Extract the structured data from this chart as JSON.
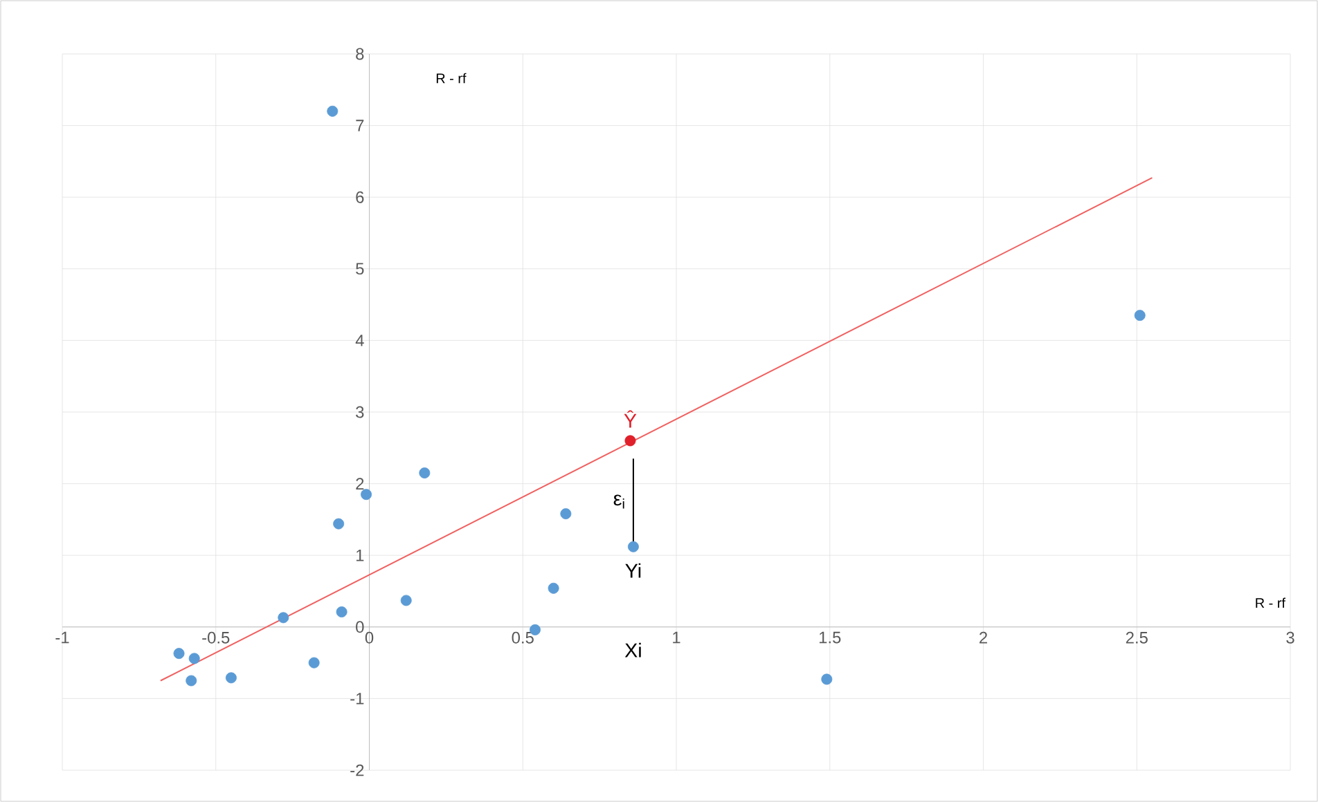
{
  "chart_data": {
    "type": "scatter",
    "xlabel": "R - rf",
    "ylabel": "R - rf",
    "xlim": [
      -1,
      3
    ],
    "ylim": [
      -2,
      8
    ],
    "xticks": [
      -1,
      -0.5,
      0,
      0.5,
      1,
      1.5,
      2,
      2.5,
      3
    ],
    "yticks": [
      -2,
      -1,
      0,
      1,
      2,
      3,
      4,
      5,
      6,
      7,
      8
    ],
    "grid": true,
    "series": [
      {
        "marker": "circle",
        "color": "#5b9bd5",
        "x": [
          -0.12,
          2.51,
          0.18,
          -0.01,
          0.64,
          -0.1,
          0.86,
          0.12,
          -0.09,
          0.6,
          -0.28,
          0.54,
          -0.62,
          -0.57,
          -0.18,
          -0.58,
          -0.45,
          1.49
        ],
        "values": [
          7.2,
          4.35,
          2.15,
          1.85,
          1.58,
          1.44,
          1.12,
          0.37,
          0.21,
          0.54,
          0.13,
          -0.04,
          -0.37,
          -0.44,
          -0.5,
          -0.75,
          -0.71,
          -0.73
        ]
      },
      {
        "type": "line",
        "color": "#f06060",
        "x": [
          -0.68,
          2.55
        ],
        "values": [
          -0.75,
          6.27
        ]
      },
      {
        "type": "line",
        "color": "#000000",
        "x": [
          0.86,
          0.86
        ],
        "values": [
          2.35,
          1.15
        ]
      },
      {
        "marker": "circle",
        "color": "#e0202a",
        "x": [
          0.85
        ],
        "values": [
          2.6
        ]
      }
    ],
    "annotations": [
      "Ŷ",
      "ε$_{i}$",
      "Yi",
      "Xi"
    ]
  }
}
